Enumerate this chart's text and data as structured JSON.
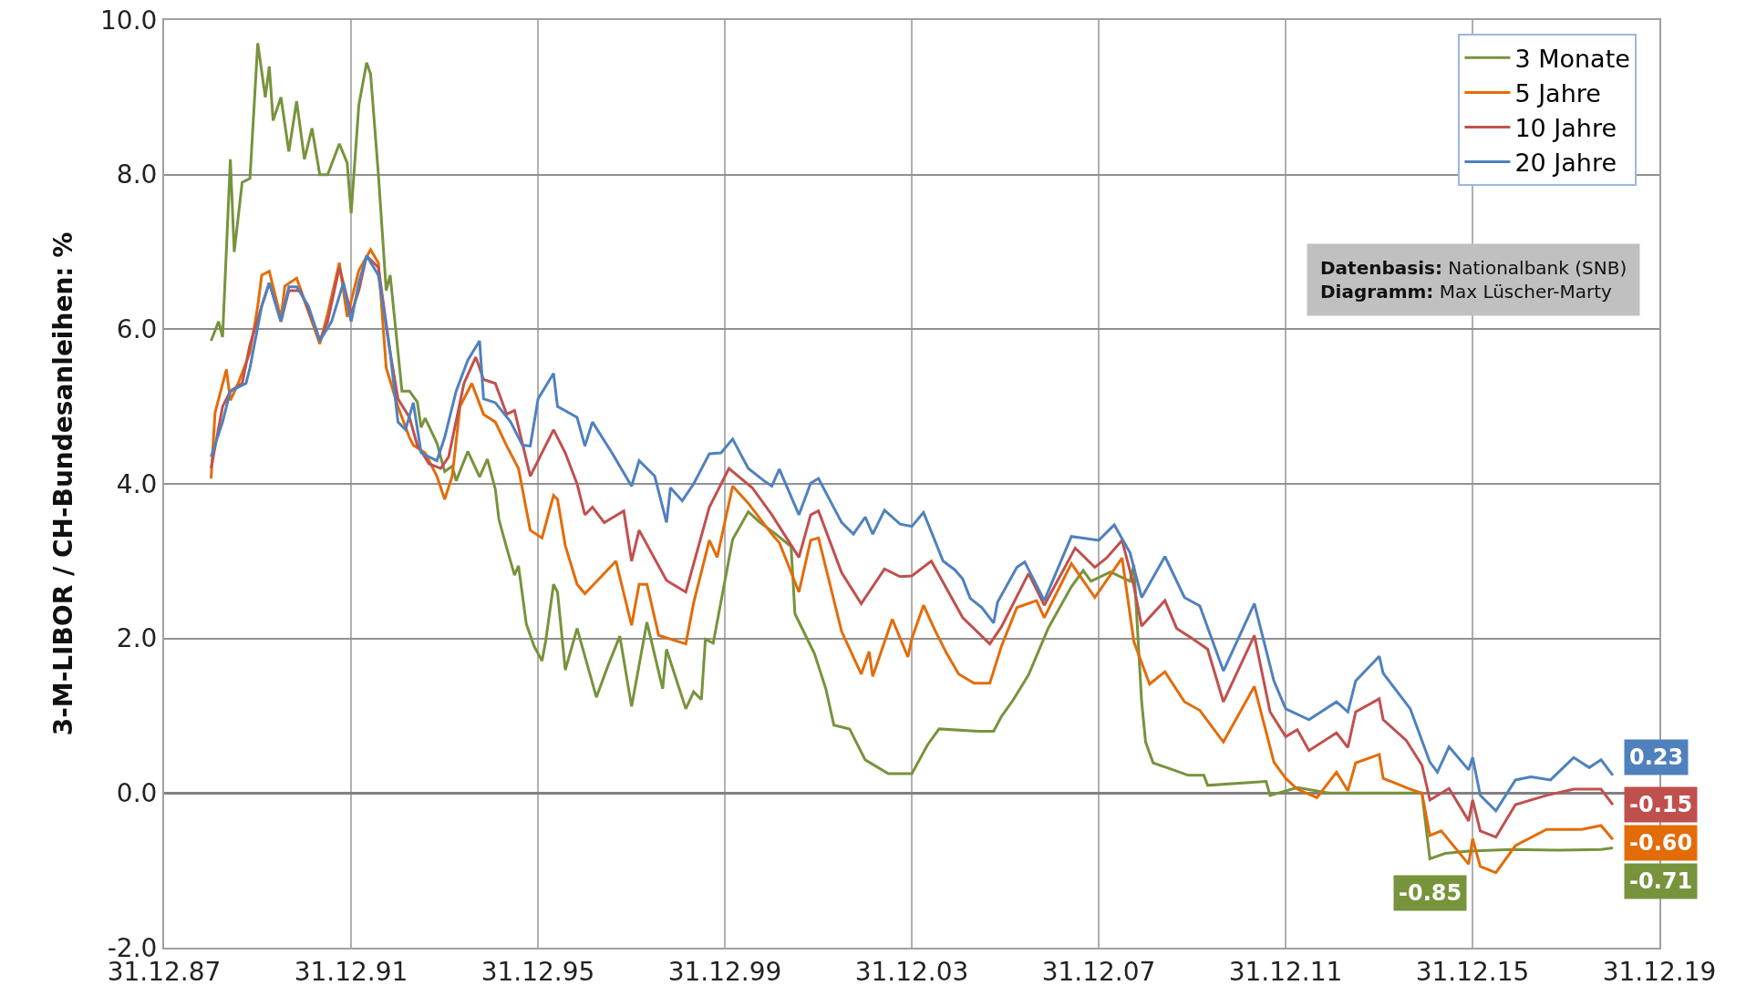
{
  "chart_data": {
    "type": "line",
    "ylabel": "3-M-LIBOR / CH-Bundesanleihen: %",
    "xlim": [
      "1987-12-31",
      "2019-12-31"
    ],
    "xticks": [
      {
        "value": "1987-12-31",
        "label": "31.12.87"
      },
      {
        "value": "1991-12-31",
        "label": "31.12.91"
      },
      {
        "value": "1995-12-31",
        "label": "31.12.95"
      },
      {
        "value": "1999-12-31",
        "label": "31.12.99"
      },
      {
        "value": "2003-12-31",
        "label": "31.12.03"
      },
      {
        "value": "2007-12-31",
        "label": "31.12.07"
      },
      {
        "value": "2011-12-31",
        "label": "31.12.11"
      },
      {
        "value": "2015-12-31",
        "label": "31.12.15"
      },
      {
        "value": "2019-12-31",
        "label": "31.12.19"
      }
    ],
    "ylim": [
      -2,
      10
    ],
    "yticks": [
      {
        "value": -2,
        "label": "-2.0"
      },
      {
        "value": 0,
        "label": "0.0"
      },
      {
        "value": 2,
        "label": "2.0"
      },
      {
        "value": 4,
        "label": "4.0"
      },
      {
        "value": 6,
        "label": "6.0"
      },
      {
        "value": 8,
        "label": "8.0"
      },
      {
        "value": 10,
        "label": "10.0"
      }
    ],
    "grid": true,
    "legend": "top right",
    "line_style": "solid",
    "series": [
      {
        "name": "3 Monate",
        "color": "#77933c",
        "x": [
          "1989-01",
          "1989-03",
          "1989-04",
          "1989-06",
          "1989-07",
          "1989-09",
          "1989-11",
          "1990-01",
          "1990-03",
          "1990-04",
          "1990-05",
          "1990-07",
          "1990-09",
          "1990-11",
          "1991-01",
          "1991-03",
          "1991-05",
          "1991-07",
          "1991-10",
          "1991-12",
          "1992-01",
          "1992-03",
          "1992-05",
          "1992-06",
          "1992-08",
          "1992-10",
          "1992-11",
          "1993-02",
          "1993-04",
          "1993-06",
          "1993-07",
          "1993-08",
          "1993-11",
          "1994-01",
          "1994-03",
          "1994-04",
          "1994-07",
          "1994-10",
          "1994-12",
          "1995-02",
          "1995-03",
          "1995-05",
          "1995-07",
          "1995-08",
          "1995-10",
          "1995-12",
          "1996-02",
          "1996-03",
          "1996-05",
          "1996-06",
          "1996-08",
          "1996-11",
          "1997-04",
          "1997-07",
          "1997-10",
          "1998-01",
          "1998-05",
          "1998-09",
          "1998-10",
          "1999-03",
          "1999-05",
          "1999-07",
          "1999-08",
          "1999-10",
          "2000-03",
          "2000-07",
          "2000-10",
          "2001-02",
          "2001-06",
          "2001-07",
          "2001-12",
          "2002-03",
          "2002-05",
          "2002-09",
          "2003-01",
          "2003-07",
          "2004-01",
          "2004-05",
          "2004-08",
          "2005-06",
          "2005-10",
          "2005-12",
          "2006-03",
          "2006-07",
          "2006-12",
          "2007-06",
          "2007-09",
          "2007-11",
          "2008-04",
          "2008-09",
          "2008-10",
          "2008-12",
          "2009-01",
          "2009-03",
          "2009-07",
          "2009-12",
          "2010-04",
          "2010-05",
          "2011-08",
          "2011-09",
          "2012-04",
          "2012-12",
          "2014-12",
          "2015-02",
          "2015-06",
          "2015-12",
          "2016-11",
          "2017-11",
          "2018-10",
          "2019-01"
        ],
        "values": [
          5.85,
          6.1,
          5.9,
          8.2,
          7.0,
          7.9,
          7.95,
          9.7,
          9.0,
          9.4,
          8.7,
          9.0,
          8.3,
          8.95,
          8.2,
          8.6,
          8.0,
          8.0,
          8.4,
          8.15,
          7.5,
          8.9,
          9.45,
          9.3,
          8.0,
          6.5,
          6.7,
          5.2,
          5.2,
          5.06,
          4.73,
          4.85,
          4.53,
          4.16,
          4.23,
          4.04,
          4.42,
          4.09,
          4.32,
          3.93,
          3.54,
          3.17,
          2.82,
          2.94,
          2.19,
          1.9,
          1.71,
          1.97,
          2.7,
          2.6,
          1.59,
          2.13,
          1.24,
          1.65,
          2.03,
          1.12,
          2.21,
          1.35,
          1.86,
          1.09,
          1.31,
          1.21,
          1.99,
          1.94,
          3.28,
          3.64,
          3.5,
          3.35,
          3.19,
          2.32,
          1.8,
          1.34,
          0.88,
          0.83,
          0.43,
          0.25,
          0.25,
          0.62,
          0.83,
          0.8,
          0.8,
          0.99,
          1.2,
          1.53,
          2.13,
          2.67,
          2.88,
          2.74,
          2.86,
          2.74,
          2.95,
          1.18,
          0.66,
          0.39,
          0.32,
          0.23,
          0.23,
          0.1,
          0.15,
          -0.03,
          0.07,
          0.0,
          0.0,
          -0.85,
          -0.78,
          -0.75,
          -0.73,
          -0.74,
          -0.73,
          -0.71
        ]
      },
      {
        "name": "5 Jahre",
        "color": "#e36c09",
        "x": [
          "1989-01",
          "1989-02",
          "1989-05",
          "1989-06",
          "1989-08",
          "1989-11",
          "1990-01",
          "1990-02",
          "1990-04",
          "1990-07",
          "1990-08",
          "1990-11",
          "1991-05",
          "1991-07",
          "1991-10",
          "1991-12",
          "1992-03",
          "1992-06",
          "1992-08",
          "1992-10",
          "1993-01",
          "1993-04",
          "1993-05",
          "1993-08",
          "1993-11",
          "1994-01",
          "1994-03",
          "1994-05",
          "1994-08",
          "1994-11",
          "1995-02",
          "1995-05",
          "1995-08",
          "1995-11",
          "1996-02",
          "1996-05",
          "1996-06",
          "1996-08",
          "1996-11",
          "1997-01",
          "1997-09",
          "1998-01",
          "1998-03",
          "1998-05",
          "1998-08",
          "1999-03",
          "1999-05",
          "1999-09",
          "1999-11",
          "2000-03",
          "2000-07",
          "2001-01",
          "2001-03",
          "2001-08",
          "2001-11",
          "2002-01",
          "2002-07",
          "2002-12",
          "2003-02",
          "2003-03",
          "2003-08",
          "2003-12",
          "2004-01",
          "2004-04",
          "2004-07",
          "2004-10",
          "2005-01",
          "2005-05",
          "2005-09",
          "2005-12",
          "2006-04",
          "2006-09",
          "2006-11",
          "2007-06",
          "2007-12",
          "2008-07",
          "2008-10",
          "2009-02",
          "2009-06",
          "2009-11",
          "2010-03",
          "2010-09",
          "2011-05",
          "2011-10",
          "2012-01",
          "2012-04",
          "2012-09",
          "2013-02",
          "2013-05",
          "2013-07",
          "2014-01",
          "2014-02",
          "2014-09",
          "2014-12",
          "2015-02",
          "2015-05",
          "2015-12",
          "2016-01",
          "2016-03",
          "2016-07",
          "2016-12",
          "2017-08",
          "2018-05",
          "2018-10",
          "2019-01"
        ],
        "values": [
          4.07,
          4.92,
          5.48,
          5.08,
          5.3,
          5.7,
          6.3,
          6.7,
          6.75,
          6.14,
          6.56,
          6.66,
          5.81,
          6.2,
          6.86,
          6.16,
          6.76,
          7.03,
          6.86,
          5.5,
          5.0,
          4.6,
          4.5,
          4.4,
          4.1,
          3.8,
          4.1,
          5.0,
          5.3,
          4.9,
          4.8,
          4.49,
          4.2,
          3.4,
          3.3,
          3.85,
          3.8,
          3.2,
          2.7,
          2.58,
          3.0,
          2.17,
          2.7,
          2.7,
          2.04,
          1.93,
          2.46,
          3.27,
          3.05,
          3.97,
          3.75,
          3.35,
          3.24,
          2.6,
          3.27,
          3.3,
          2.09,
          1.54,
          1.83,
          1.51,
          2.25,
          1.76,
          2.0,
          2.43,
          2.1,
          1.8,
          1.54,
          1.42,
          1.42,
          1.9,
          2.4,
          2.49,
          2.27,
          2.97,
          2.53,
          3.04,
          1.96,
          1.41,
          1.57,
          1.18,
          1.07,
          0.66,
          1.38,
          0.4,
          0.19,
          0.05,
          -0.06,
          0.27,
          0.03,
          0.39,
          0.5,
          0.19,
          0.05,
          0.0,
          -0.55,
          -0.49,
          -0.92,
          -0.59,
          -0.95,
          -1.03,
          -0.68,
          -0.47,
          -0.47,
          -0.42,
          -0.6
        ]
      },
      {
        "name": "10 Jahre",
        "color": "#c0504d",
        "x": [
          "1989-01",
          "1989-04",
          "1989-06",
          "1989-09",
          "1989-11",
          "1990-02",
          "1990-04",
          "1990-07",
          "1990-09",
          "1990-12",
          "1991-04",
          "1991-05",
          "1991-07",
          "1991-10",
          "1992-01",
          "1992-03",
          "1992-05",
          "1992-08",
          "1992-11",
          "1993-01",
          "1993-04",
          "1993-06",
          "1993-09",
          "1993-12",
          "1994-02",
          "1994-06",
          "1994-09",
          "1994-11",
          "1995-02",
          "1995-05",
          "1995-07",
          "1995-11",
          "1996-05",
          "1996-08",
          "1996-11",
          "1997-01",
          "1997-03",
          "1997-06",
          "1997-11",
          "1998-01",
          "1998-03",
          "1998-10",
          "1999-03",
          "1999-09",
          "2000-02",
          "2000-08",
          "2001-01",
          "2001-08",
          "2001-11",
          "2002-01",
          "2002-07",
          "2002-12",
          "2003-06",
          "2003-10",
          "2004-01",
          "2004-06",
          "2005-02",
          "2005-09",
          "2005-12",
          "2006-07",
          "2006-11",
          "2007-07",
          "2007-12",
          "2008-03",
          "2008-07",
          "2008-10",
          "2008-12",
          "2009-06",
          "2009-09",
          "2010-01",
          "2010-05",
          "2010-09",
          "2011-05",
          "2011-09",
          "2012-01",
          "2012-04",
          "2012-07",
          "2013-02",
          "2013-05",
          "2013-07",
          "2014-01",
          "2014-02",
          "2014-08",
          "2014-12",
          "2015-02",
          "2015-07",
          "2015-12",
          "2016-01",
          "2016-03",
          "2016-07",
          "2016-12",
          "2017-08",
          "2018-03",
          "2018-10",
          "2019-01"
        ],
        "values": [
          4.2,
          5.0,
          5.2,
          5.3,
          5.8,
          6.3,
          6.6,
          6.1,
          6.5,
          6.5,
          6.0,
          5.85,
          6.1,
          6.8,
          6.2,
          6.5,
          6.95,
          6.8,
          5.7,
          5.1,
          4.86,
          4.5,
          4.26,
          4.2,
          4.35,
          5.3,
          5.64,
          5.35,
          5.3,
          4.9,
          4.95,
          4.1,
          4.7,
          4.4,
          4.0,
          3.6,
          3.7,
          3.5,
          3.65,
          3.0,
          3.4,
          2.75,
          2.6,
          3.7,
          4.2,
          3.95,
          3.6,
          3.05,
          3.6,
          3.65,
          2.85,
          2.45,
          2.9,
          2.8,
          2.81,
          3.0,
          2.27,
          1.93,
          2.15,
          2.84,
          2.43,
          3.17,
          2.92,
          3.04,
          3.27,
          2.68,
          2.16,
          2.49,
          2.13,
          2.0,
          1.86,
          1.18,
          2.04,
          1.05,
          0.73,
          0.82,
          0.55,
          0.78,
          0.59,
          1.05,
          1.22,
          0.95,
          0.68,
          0.36,
          -0.09,
          0.06,
          -0.36,
          -0.09,
          -0.49,
          -0.57,
          -0.15,
          -0.03,
          0.05,
          0.05,
          -0.15
        ]
      },
      {
        "name": "20 Jahre",
        "color": "#4f81bd",
        "x": [
          "1989-01",
          "1989-04",
          "1989-06",
          "1989-10",
          "1989-11",
          "1990-02",
          "1990-04",
          "1990-07",
          "1990-09",
          "1990-11",
          "1991-02",
          "1991-05",
          "1991-08",
          "1991-11",
          "1992-01",
          "1992-03",
          "1992-05",
          "1992-08",
          "1992-11",
          "1993-01",
          "1993-03",
          "1993-05",
          "1993-07",
          "1993-11",
          "1994-01",
          "1994-04",
          "1994-07",
          "1994-10",
          "1994-11",
          "1995-02",
          "1995-06",
          "1995-09",
          "1995-11",
          "1996-01",
          "1996-05",
          "1996-06",
          "1996-11",
          "1997-01",
          "1997-03",
          "1997-08",
          "1998-01",
          "1998-03",
          "1998-07",
          "1998-10",
          "1998-11",
          "1999-02",
          "1999-05",
          "1999-09",
          "1999-12",
          "2000-03",
          "2000-07",
          "2000-11",
          "2001-01",
          "2001-03",
          "2001-08",
          "2001-11",
          "2002-01",
          "2002-07",
          "2002-10",
          "2003-01",
          "2003-03",
          "2003-06",
          "2003-10",
          "2004-01",
          "2004-04",
          "2004-09",
          "2004-12",
          "2005-02",
          "2005-04",
          "2005-07",
          "2005-10",
          "2005-11",
          "2006-04",
          "2006-06",
          "2006-11",
          "2007-06",
          "2008-01",
          "2008-05",
          "2008-09",
          "2008-12",
          "2009-06",
          "2009-11",
          "2010-03",
          "2010-09",
          "2011-05",
          "2011-10",
          "2012-01",
          "2012-07",
          "2013-02",
          "2013-05",
          "2013-07",
          "2014-01",
          "2014-02",
          "2014-09",
          "2014-12",
          "2015-02",
          "2015-04",
          "2015-07",
          "2015-12",
          "2016-01",
          "2016-03",
          "2016-07",
          "2016-12",
          "2017-04",
          "2017-09",
          "2018-03",
          "2018-07",
          "2018-10",
          "2019-01"
        ],
        "values": [
          4.35,
          4.8,
          5.2,
          5.3,
          5.5,
          6.3,
          6.6,
          6.1,
          6.55,
          6.55,
          6.3,
          5.85,
          6.1,
          6.6,
          6.1,
          6.6,
          6.95,
          6.7,
          5.7,
          4.8,
          4.7,
          5.05,
          4.4,
          4.3,
          4.6,
          5.2,
          5.6,
          5.85,
          5.1,
          5.05,
          4.8,
          4.5,
          4.49,
          5.1,
          5.43,
          5.0,
          4.86,
          4.49,
          4.8,
          4.4,
          3.97,
          4.3,
          4.1,
          3.5,
          3.95,
          3.78,
          4.0,
          4.39,
          4.4,
          4.58,
          4.2,
          4.04,
          3.97,
          4.19,
          3.6,
          4.01,
          4.07,
          3.5,
          3.35,
          3.57,
          3.35,
          3.66,
          3.48,
          3.45,
          3.63,
          3.0,
          2.89,
          2.77,
          2.52,
          2.4,
          2.2,
          2.47,
          2.92,
          2.99,
          2.49,
          3.32,
          3.27,
          3.47,
          3.11,
          2.53,
          3.06,
          2.53,
          2.42,
          1.58,
          2.45,
          1.45,
          1.09,
          0.95,
          1.18,
          1.05,
          1.45,
          1.77,
          1.55,
          1.09,
          0.68,
          0.4,
          0.27,
          0.6,
          0.3,
          0.46,
          -0.03,
          -0.23,
          0.17,
          0.21,
          0.17,
          0.46,
          0.33,
          0.43,
          0.23
        ]
      }
    ],
    "annotations": [
      "Datenbasis: Nationalbank (SNB)",
      "Diagramm: Max Lüscher-Marty",
      {
        "text": "0.23",
        "x": "2019-01",
        "y": 0.23
      },
      {
        "text": "-0.15",
        "x": "2019-01",
        "y": -0.15
      },
      {
        "text": "-0.60",
        "x": "2019-01",
        "y": -0.6
      },
      {
        "text": "-0.71",
        "x": "2019-01",
        "y": -0.71
      },
      {
        "text": "-0.85",
        "x": "2015-02",
        "y": -0.85
      }
    ]
  }
}
